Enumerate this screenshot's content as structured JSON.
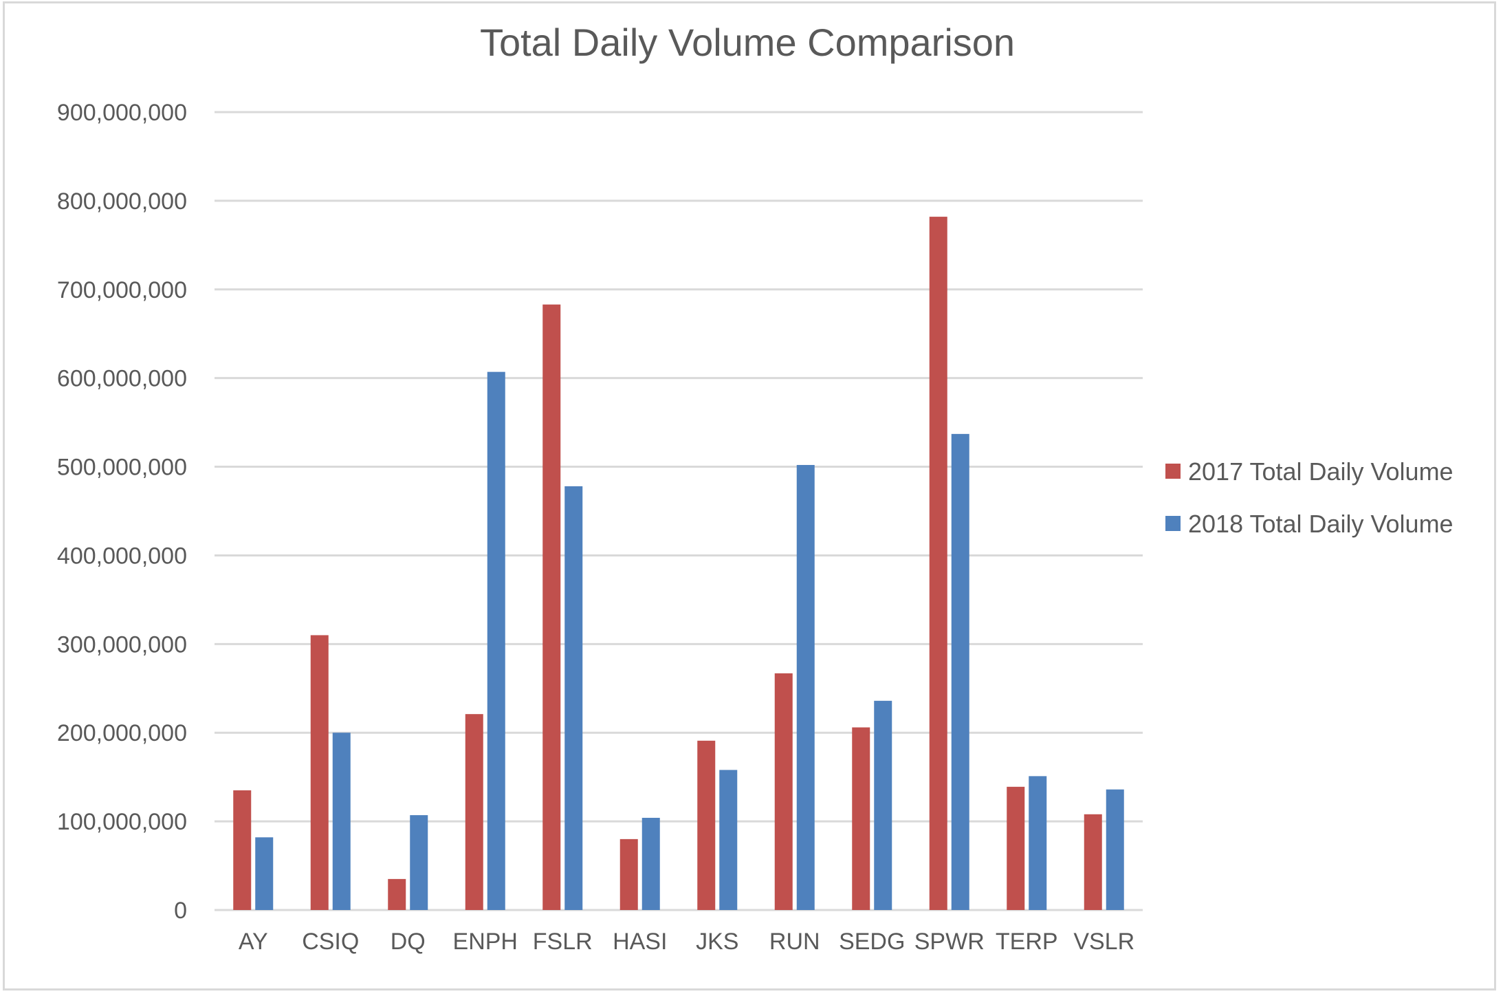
{
  "chart_data": {
    "type": "bar",
    "title": "Total Daily Volume Comparison",
    "xlabel": "",
    "ylabel": "",
    "categories": [
      "AY",
      "CSIQ",
      "DQ",
      "ENPH",
      "FSLR",
      "HASI",
      "JKS",
      "RUN",
      "SEDG",
      "SPWR",
      "TERP",
      "VSLR"
    ],
    "series": [
      {
        "name": "2017 Total Daily Volume",
        "color": "#c0504d",
        "values": [
          135000000,
          310000000,
          35000000,
          221000000,
          683000000,
          80000000,
          191000000,
          267000000,
          206000000,
          782000000,
          139000000,
          108000000
        ]
      },
      {
        "name": "2018 Total Daily Volume",
        "color": "#4f81bd",
        "values": [
          82000000,
          200000000,
          107000000,
          607000000,
          478000000,
          104000000,
          158000000,
          502000000,
          236000000,
          537000000,
          151000000,
          136000000
        ]
      }
    ],
    "ylim": [
      0,
      900000000
    ],
    "yticks": [
      0,
      100000000,
      200000000,
      300000000,
      400000000,
      500000000,
      600000000,
      700000000,
      800000000,
      900000000
    ],
    "ytick_labels": [
      "0",
      "100,000,000",
      "200,000,000",
      "300,000,000",
      "400,000,000",
      "500,000,000",
      "600,000,000",
      "700,000,000",
      "800,000,000",
      "900,000,000"
    ],
    "grid": true,
    "legend_position": "right"
  }
}
